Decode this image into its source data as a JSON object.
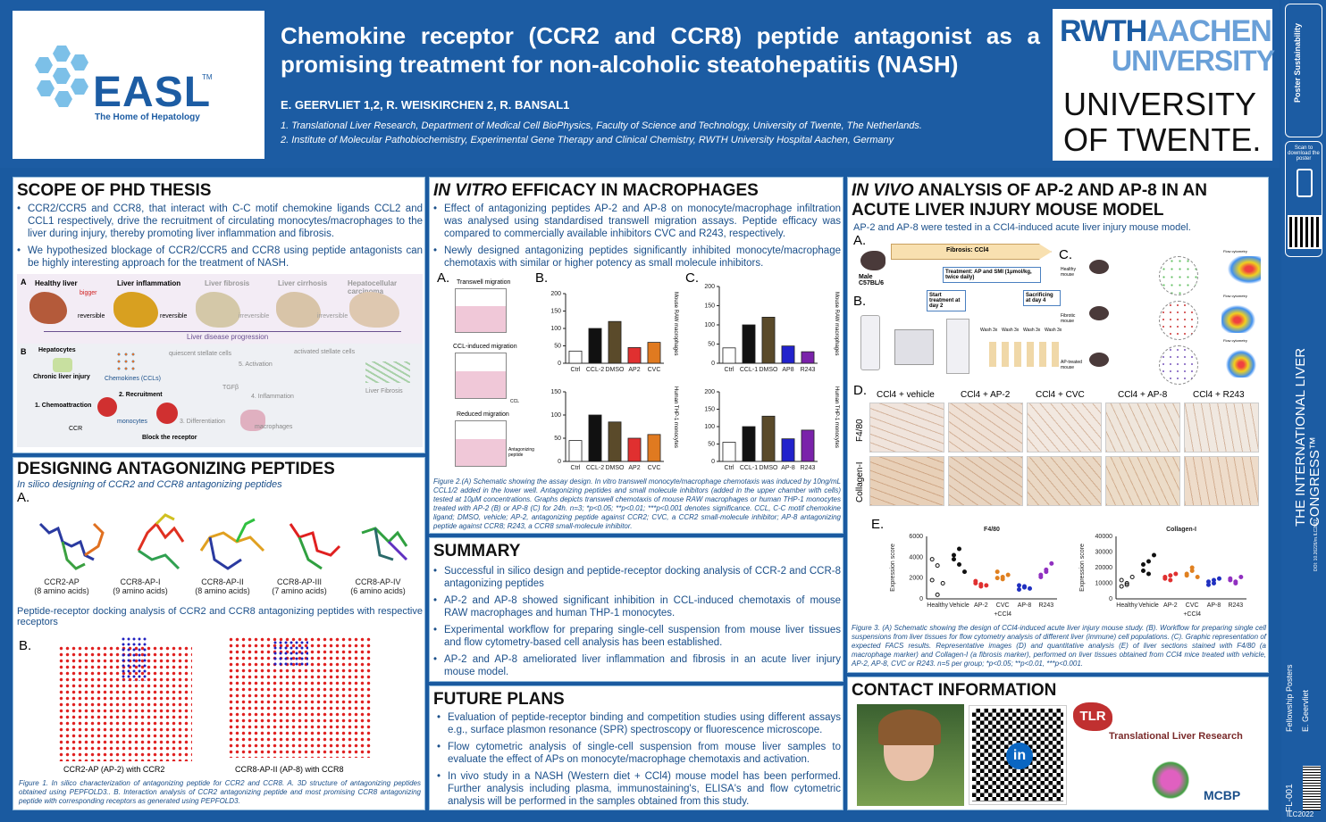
{
  "header": {
    "title": "Chemokine receptor (CCR2 and CCR8) peptide antagonist as a promising treatment for non-alcoholic steatohepatitis (NASH)",
    "authors": "E. GEERVLIET 1,2, R. WEISKIRCHEN 2, R. BANSAL1",
    "affil1": "1. Translational Liver Research, Department of Medical Cell BioPhysics, Faculty of Science and Technology, University of Twente, The Netherlands.",
    "affil2": "2. Institute of Molecular Pathobiochemistry, Experimental Gene Therapy and Clinical Chemistry, RWTH University Hospital Aachen, Germany",
    "easl": "EASL",
    "easl_tm": "TM",
    "easl_sub": "The Home of Hepatology",
    "rwth1": "RWTH",
    "rwth2": "AACHEN",
    "rwth3": "UNIVERSITY",
    "twente1": "UNIVERSITY",
    "twente2": "OF TWENTE."
  },
  "sidebar": {
    "brand": "Poster Sustainability",
    "scan": "Scan to download the poster",
    "congress": "THE INTERNATIONAL LIVER CONGRESS™",
    "doi": "DOI: 10.26226/m.ILC2022",
    "fellowship": "Fellowship Posters",
    "author": "E. Geervliet",
    "code": "FL-001",
    "ilc": "ILC2022"
  },
  "scope": {
    "title": "SCOPE OF PHD THESIS",
    "b1": "CCR2/CCR5 and CCR8, that interact with C-C motif chemokine ligands CCL2 and CCL1 respectively, drive the recruitment of circulating monocytes/macrophages to the liver during injury, thereby promoting liver inflammation and fibrosis.",
    "b2": "We hypothesized blockage of CCR2/CCR5 and CCR8 using peptide antagonists can be highly interesting approach for the treatment of NASH.",
    "fig": {
      "a": "A",
      "b": "B",
      "stages": [
        "Healthy liver",
        "Liver inflammation",
        "Liver fibrosis",
        "Liver cirrhosis",
        "Hepatocellular carcinoma"
      ],
      "bigger": "bigger",
      "rev1": "reversible",
      "rev2": "reversible",
      "irr1": "irreversible",
      "irr2": "irreversible",
      "progression": "Liver disease progression",
      "hep": "Hepatocytes",
      "chronic": "Chronic liver injury",
      "chemokines": "Chemokines (CCLs)",
      "quiescent": "quiescent stellate cells",
      "activation": "5. Activation",
      "activated": "activated stellate cells",
      "recruit": "2. Recruitment",
      "chemo": "1. Chemoattraction",
      "ccr": "CCR",
      "monocytes": "monocytes",
      "diff": "3. Differentiation",
      "tgf": "TGFβ",
      "inflam": "4. Inflammation",
      "macro": "macrophages",
      "block": "Block the receptor",
      "fibrosis": "Liver Fibrosis"
    }
  },
  "design": {
    "title": "DESIGNING ANTAGONIZING PEPTIDES",
    "subtitle": "In silico designing of CCR2 and CCR8 antagonizing peptides",
    "a": "A.",
    "b": "B.",
    "mols": [
      {
        "name": "CCR2-AP",
        "aa": "(8 amino acids)"
      },
      {
        "name": "CCR8-AP-I",
        "aa": "(9 amino acids)"
      },
      {
        "name": "CCR8-AP-II",
        "aa": "(8 amino acids)"
      },
      {
        "name": "CCR8-AP-III",
        "aa": "(7 amino acids)"
      },
      {
        "name": "CCR8-AP-IV",
        "aa": "(6 amino acids)"
      }
    ],
    "docking": "Peptide-receptor docking analysis of CCR2 and CCR8 antagonizing peptides with respective receptors",
    "dock1": "CCR2-AP (AP-2) with CCR2",
    "dock2": "CCR8-AP-II (AP-8) with CCR8",
    "caption": "Figure 1. In silico characterization of antagonizing peptide for CCR2 and CCR8. A. 3D structure of antagonizing peptides obtained using PEPFOLD3.. B. Interaction analysis of CCR2 antagonizing peptide and most promising CCR8 antagonizing peptide with corresponding receptors as generated using PEPFOLD3."
  },
  "invitro": {
    "title_i": "IN VITRO",
    "title_r": " EFFICACY IN MACROPHAGES",
    "b1": "Effect of antagonizing peptides AP-2 and AP-8 on monocyte/macrophage infiltration was analysed using standardised transwell migration assays. Peptide efficacy was compared to commercially available inhibitors CVC and R243, respectively.",
    "b2": "Newly designed antagonizing peptides significantly inhibited monocyte/macrophage chemotaxis with similar or higher potency as small molecule inhibitors.",
    "labA": "A.",
    "labB": "B.",
    "labC": "C.",
    "tw1": "Transwell migration",
    "tw2": "CCL-induced migration",
    "tw3": "Reduced migration",
    "ccl": "CCL",
    "antag": "Antagonizing peptide",
    "ylabel": "% migrated cells compared to CCL-2",
    "ylabel8": "% migrated cells compared to CCL-1",
    "mouse": "Mouse RAW macrophages",
    "human": "Human THP-1 monocytes",
    "caption": "Figure 2.(A) Schematic showing the assay design. In vitro transwell monocyte/macrophage chemotaxis was induced by 10ng/mL CCL1/2 added in the lower well. Antagonizing peptides and small molecule inhibitors (added in the upper chamber with cells) tested at 10μM concentrations. Graphs depicts transwell chemotaxis of mouse RAW macrophages or human THP-1 monocytes treated with AP-2 (B) or AP-8 (C) for 24h. n=3; *p<0.05; **p<0.01; ***p<0.001 denotes significance. CCL, C-C motif chemokine ligand; DMSO, vehicle; AP-2, antagonizing peptide against CCR2; CVC, a CCR2 small-molecule inhibitor; AP-8 antagonizing peptide against CCR8; R243, a CCR8 small-molecule inhibitor."
  },
  "chart_data": [
    {
      "type": "bar",
      "id": "B-mouse",
      "categories": [
        "Ctrl",
        "CCL-2",
        "DMSO",
        "AP2",
        "CVC"
      ],
      "values": [
        35,
        100,
        120,
        45,
        60
      ],
      "ylim": [
        0,
        200
      ],
      "ticks": [
        0,
        50,
        100,
        150,
        200
      ],
      "colors": [
        "#ffffff",
        "#111111",
        "#5a4a2a",
        "#e03030",
        "#e07a20"
      ]
    },
    {
      "type": "bar",
      "id": "B-human",
      "categories": [
        "Ctrl",
        "CCL-2",
        "DMSO",
        "AP2",
        "CVC"
      ],
      "values": [
        45,
        100,
        85,
        50,
        58
      ],
      "ylim": [
        0,
        150
      ],
      "ticks": [
        0,
        50,
        100,
        150
      ],
      "colors": [
        "#ffffff",
        "#111111",
        "#5a4a2a",
        "#e03030",
        "#e07a20"
      ]
    },
    {
      "type": "bar",
      "id": "C-mouse",
      "categories": [
        "Ctrl",
        "CCL-1",
        "DMSO",
        "AP8",
        "R243"
      ],
      "values": [
        40,
        100,
        120,
        45,
        30
      ],
      "ylim": [
        0,
        200
      ],
      "ticks": [
        0,
        50,
        100,
        150,
        200
      ],
      "colors": [
        "#ffffff",
        "#111111",
        "#5a4a2a",
        "#2222cc",
        "#7a22aa"
      ]
    },
    {
      "type": "bar",
      "id": "C-human",
      "categories": [
        "Ctrl",
        "CCL-1",
        "DMSO",
        "AP-8",
        "R243"
      ],
      "values": [
        55,
        100,
        130,
        65,
        90
      ],
      "ylim": [
        0,
        200
      ],
      "ticks": [
        0,
        50,
        100,
        150,
        200
      ],
      "colors": [
        "#ffffff",
        "#111111",
        "#5a4a2a",
        "#2222cc",
        "#7a22aa"
      ]
    },
    {
      "type": "scatter",
      "id": "E-F480",
      "title": "F4/80",
      "ylabel": "Expression score",
      "categories": [
        "Healthy",
        "Vehicle",
        "AP-2",
        "CVC",
        "AP-8",
        "R243"
      ],
      "ylim": [
        0,
        6000
      ],
      "ticks": [
        0,
        2000,
        4000,
        6000
      ],
      "xgroup": "+CCl4"
    },
    {
      "type": "scatter",
      "id": "E-Col",
      "title": "Collagen-I",
      "ylabel": "Expression score",
      "categories": [
        "Healthy",
        "Vehicle",
        "AP-2",
        "CVC",
        "AP-8",
        "R243"
      ],
      "ylim": [
        0,
        40000
      ],
      "ticks": [
        0,
        10000,
        20000,
        30000,
        40000
      ],
      "xgroup": "+CCl4"
    }
  ],
  "summary": {
    "title": "SUMMARY",
    "b1": "Successful in silico design and peptide-receptor docking analysis of CCR-2 and CCR-8 antagonizing peptides",
    "b2": "AP-2 and AP-8 showed significant inhibition in CCL-induced chemotaxis of mouse RAW macrophages and human THP-1 monocytes.",
    "b3": "Experimental workflow for preparing single-cell suspension from mouse liver tissues and flow cytometry-based cell analysis has been established.",
    "b4": "AP-2 and AP-8 ameliorated liver inflammation and fibrosis in an acute liver injury mouse model."
  },
  "future": {
    "title": "FUTURE PLANS",
    "b1": "Evaluation of peptide-receptor binding and competition studies using different assays e.g., surface plasmon resonance (SPR) spectroscopy or fluorescence microscope.",
    "b2": "Flow cytometric analysis of single-cell suspension from mouse liver samples to evaluate the effect of APs on monocyte/macrophage chemotaxis and activation.",
    "b3": "In vivo study in a NASH (Western diet + CCl4) mouse model has been performed. Further analysis including plasma, immunostaining's, ELISA's  and flow cytometric analysis will be performed in the samples obtained from this study."
  },
  "invivo": {
    "title_i": "IN VIVO",
    "title_r": " ANALYSIS OF AP-2 AND AP-8 IN AN ACUTE LIVER INJURY MOUSE MODEL",
    "intro": "AP-2 and AP-8 were tested in a CCl4-induced acute liver injury mouse model.",
    "labA": "A.",
    "labB": "B.",
    "labC": "C.",
    "labD": "D.",
    "labE": "E.",
    "fibrosis": "Fibrosis: CCl4",
    "treatment": "Treatment: AP and SMI (1μmol/kg, twice daily)",
    "male": "Male C57BL/6",
    "start": "Start treatment at day 2",
    "sac": "Sacrificing at day 4",
    "wash": [
      "Wash 3x",
      "Wash 3x",
      "Wash 3x",
      "Wash 3x"
    ],
    "cgroups": [
      "Healthy mouse",
      "Fibrotic mouse",
      "AP-treated mouse"
    ],
    "flow": "Flow cytometry",
    "dcols": [
      "CCl4 + vehicle",
      "CCl4 + AP-2",
      "CCl4 + CVC",
      "CCl4 + AP-8",
      "CCl4 + R243"
    ],
    "drows": [
      "F4/80",
      "Collagen-I"
    ],
    "caption": "Figure 3. (A) Schematic showing the design of CCl4-induced acute liver injury mouse study. (B). Workflow for preparing single cell suspensions from liver tissues for flow cytometry analysis of different liver (immune) cell populations. (C). Graphic representation of expected FACS results. Representative images (D) and quantitative analysis (E) of liver sections stained with F4/80 (a macrophage marker) and Collagen-I (a fibrosis marker), performed on liver tissues obtained from CCl4 mice treated with vehicle, AP-2, AP-8, CVC or R243. n=5 per group; *p<0.05; **p<0.01, ***p<0.001."
  },
  "contact": {
    "title": "CONTACT INFORMATION",
    "tlr": "TLR",
    "tlr_text": "Translational Liver Research",
    "mcbp": "MCBP"
  }
}
